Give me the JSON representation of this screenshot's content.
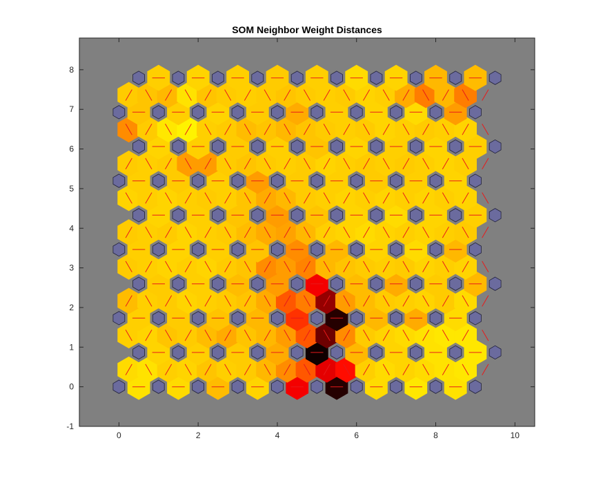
{
  "chart_data": {
    "type": "heatmap",
    "title": "SOM Neighbor Weight Distances",
    "xlabel": "",
    "ylabel": "",
    "xlim": [
      -1,
      10.5
    ],
    "ylim": [
      -1,
      8.8
    ],
    "xticks": [
      "0",
      "2",
      "4",
      "6",
      "8",
      "10"
    ],
    "yticks": [
      "-1",
      "0",
      "1",
      "2",
      "3",
      "4",
      "5",
      "6",
      "7",
      "8"
    ],
    "grid_rows": 10,
    "grid_cols": 10,
    "neuron_color": "#6b6b9e",
    "line_color": "#e8191a",
    "axes_background": "#808080",
    "colormap": [
      "#ffff00",
      "#ffd700",
      "#ffb000",
      "#ff7d00",
      "#ff0000",
      "#7a0000",
      "#000000"
    ],
    "edges": [
      {
        "x": 0.5,
        "y": 0.0,
        "v": 0.12
      },
      {
        "x": 1.5,
        "y": 0.0,
        "v": 0.15
      },
      {
        "x": 2.5,
        "y": 0.0,
        "v": 0.28
      },
      {
        "x": 3.5,
        "y": 0.0,
        "v": 0.18
      },
      {
        "x": 4.5,
        "y": 0.0,
        "v": 0.68
      },
      {
        "x": 5.5,
        "y": 0.0,
        "v": 0.95
      },
      {
        "x": 6.5,
        "y": 0.0,
        "v": 0.15
      },
      {
        "x": 7.5,
        "y": 0.0,
        "v": 0.1
      },
      {
        "x": 8.5,
        "y": 0.0,
        "v": 0.12
      },
      {
        "x": 0.25,
        "y": 0.433,
        "v": 0.15
      },
      {
        "x": 0.75,
        "y": 0.433,
        "v": 0.12
      },
      {
        "x": 1.25,
        "y": 0.433,
        "v": 0.2
      },
      {
        "x": 1.75,
        "y": 0.433,
        "v": 0.18
      },
      {
        "x": 2.25,
        "y": 0.433,
        "v": 0.25
      },
      {
        "x": 2.75,
        "y": 0.433,
        "v": 0.2
      },
      {
        "x": 3.25,
        "y": 0.433,
        "v": 0.22
      },
      {
        "x": 3.75,
        "y": 0.433,
        "v": 0.3
      },
      {
        "x": 4.25,
        "y": 0.433,
        "v": 0.45
      },
      {
        "x": 4.75,
        "y": 0.433,
        "v": 0.55
      },
      {
        "x": 5.25,
        "y": 0.433,
        "v": 0.7
      },
      {
        "x": 5.75,
        "y": 0.433,
        "v": 0.65
      },
      {
        "x": 6.25,
        "y": 0.433,
        "v": 0.2
      },
      {
        "x": 6.75,
        "y": 0.433,
        "v": 0.15
      },
      {
        "x": 7.25,
        "y": 0.433,
        "v": 0.18
      },
      {
        "x": 7.75,
        "y": 0.433,
        "v": 0.15
      },
      {
        "x": 8.25,
        "y": 0.433,
        "v": 0.12
      },
      {
        "x": 8.75,
        "y": 0.433,
        "v": 0.1
      },
      {
        "x": 1.0,
        "y": 0.866,
        "v": 0.18
      },
      {
        "x": 2.0,
        "y": 0.866,
        "v": 0.2
      },
      {
        "x": 3.0,
        "y": 0.866,
        "v": 0.22
      },
      {
        "x": 4.0,
        "y": 0.866,
        "v": 0.35
      },
      {
        "x": 5.0,
        "y": 0.866,
        "v": 0.98
      },
      {
        "x": 6.0,
        "y": 0.866,
        "v": 0.3
      },
      {
        "x": 7.0,
        "y": 0.866,
        "v": 0.18
      },
      {
        "x": 8.0,
        "y": 0.866,
        "v": 0.12
      },
      {
        "x": 9.0,
        "y": 0.866,
        "v": 0.1
      },
      {
        "x": 0.25,
        "y": 1.299,
        "v": 0.2
      },
      {
        "x": 0.75,
        "y": 1.299,
        "v": 0.18
      },
      {
        "x": 1.25,
        "y": 1.299,
        "v": 0.25
      },
      {
        "x": 1.75,
        "y": 1.299,
        "v": 0.22
      },
      {
        "x": 2.25,
        "y": 1.299,
        "v": 0.28
      },
      {
        "x": 2.75,
        "y": 1.299,
        "v": 0.35
      },
      {
        "x": 3.25,
        "y": 1.299,
        "v": 0.25
      },
      {
        "x": 3.75,
        "y": 1.299,
        "v": 0.3
      },
      {
        "x": 4.25,
        "y": 1.299,
        "v": 0.4
      },
      {
        "x": 4.75,
        "y": 1.299,
        "v": 0.55
      },
      {
        "x": 5.25,
        "y": 1.299,
        "v": 0.85
      },
      {
        "x": 5.75,
        "y": 1.299,
        "v": 0.45
      },
      {
        "x": 6.25,
        "y": 1.299,
        "v": 0.22
      },
      {
        "x": 6.75,
        "y": 1.299,
        "v": 0.18
      },
      {
        "x": 7.25,
        "y": 1.299,
        "v": 0.15
      },
      {
        "x": 7.75,
        "y": 1.299,
        "v": 0.12
      },
      {
        "x": 8.25,
        "y": 1.299,
        "v": 0.1
      },
      {
        "x": 8.75,
        "y": 1.299,
        "v": 0.1
      },
      {
        "x": 0.5,
        "y": 1.732,
        "v": 0.2
      },
      {
        "x": 1.5,
        "y": 1.732,
        "v": 0.22
      },
      {
        "x": 2.5,
        "y": 1.732,
        "v": 0.25
      },
      {
        "x": 3.5,
        "y": 1.732,
        "v": 0.3
      },
      {
        "x": 4.5,
        "y": 1.732,
        "v": 0.6
      },
      {
        "x": 5.5,
        "y": 1.732,
        "v": 0.95
      },
      {
        "x": 6.5,
        "y": 1.732,
        "v": 0.3
      },
      {
        "x": 7.5,
        "y": 1.732,
        "v": 0.35
      },
      {
        "x": 8.5,
        "y": 1.732,
        "v": 0.15
      },
      {
        "x": 0.25,
        "y": 2.165,
        "v": 0.28
      },
      {
        "x": 0.75,
        "y": 2.165,
        "v": 0.2
      },
      {
        "x": 1.25,
        "y": 2.165,
        "v": 0.22
      },
      {
        "x": 1.75,
        "y": 2.165,
        "v": 0.18
      },
      {
        "x": 2.25,
        "y": 2.165,
        "v": 0.2
      },
      {
        "x": 2.75,
        "y": 2.165,
        "v": 0.22
      },
      {
        "x": 3.25,
        "y": 2.165,
        "v": 0.25
      },
      {
        "x": 3.75,
        "y": 2.165,
        "v": 0.35
      },
      {
        "x": 4.25,
        "y": 2.165,
        "v": 0.55
      },
      {
        "x": 4.75,
        "y": 2.165,
        "v": 0.5
      },
      {
        "x": 5.25,
        "y": 2.165,
        "v": 0.8
      },
      {
        "x": 5.75,
        "y": 2.165,
        "v": 0.4
      },
      {
        "x": 6.25,
        "y": 2.165,
        "v": 0.28
      },
      {
        "x": 6.75,
        "y": 2.165,
        "v": 0.22
      },
      {
        "x": 7.25,
        "y": 2.165,
        "v": 0.2
      },
      {
        "x": 7.75,
        "y": 2.165,
        "v": 0.18
      },
      {
        "x": 8.25,
        "y": 2.165,
        "v": 0.22
      },
      {
        "x": 8.75,
        "y": 2.165,
        "v": 0.15
      },
      {
        "x": 1.0,
        "y": 2.598,
        "v": 0.22
      },
      {
        "x": 2.0,
        "y": 2.598,
        "v": 0.2
      },
      {
        "x": 3.0,
        "y": 2.598,
        "v": 0.28
      },
      {
        "x": 4.0,
        "y": 2.598,
        "v": 0.4
      },
      {
        "x": 5.0,
        "y": 2.598,
        "v": 0.68
      },
      {
        "x": 6.0,
        "y": 2.598,
        "v": 0.28
      },
      {
        "x": 7.0,
        "y": 2.598,
        "v": 0.35
      },
      {
        "x": 8.0,
        "y": 2.598,
        "v": 0.22
      },
      {
        "x": 9.0,
        "y": 2.598,
        "v": 0.3
      },
      {
        "x": 0.25,
        "y": 3.031,
        "v": 0.22
      },
      {
        "x": 0.75,
        "y": 3.031,
        "v": 0.2
      },
      {
        "x": 1.25,
        "y": 3.031,
        "v": 0.18
      },
      {
        "x": 1.75,
        "y": 3.031,
        "v": 0.2
      },
      {
        "x": 2.25,
        "y": 3.031,
        "v": 0.18
      },
      {
        "x": 2.75,
        "y": 3.031,
        "v": 0.22
      },
      {
        "x": 3.25,
        "y": 3.031,
        "v": 0.25
      },
      {
        "x": 3.75,
        "y": 3.031,
        "v": 0.45
      },
      {
        "x": 4.25,
        "y": 3.031,
        "v": 0.4
      },
      {
        "x": 4.75,
        "y": 3.031,
        "v": 0.48
      },
      {
        "x": 5.25,
        "y": 3.031,
        "v": 0.3
      },
      {
        "x": 5.75,
        "y": 3.031,
        "v": 0.25
      },
      {
        "x": 6.25,
        "y": 3.031,
        "v": 0.22
      },
      {
        "x": 6.75,
        "y": 3.031,
        "v": 0.2
      },
      {
        "x": 7.25,
        "y": 3.031,
        "v": 0.22
      },
      {
        "x": 7.75,
        "y": 3.031,
        "v": 0.18
      },
      {
        "x": 8.25,
        "y": 3.031,
        "v": 0.2
      },
      {
        "x": 8.75,
        "y": 3.031,
        "v": 0.18
      },
      {
        "x": 0.5,
        "y": 3.464,
        "v": 0.2
      },
      {
        "x": 1.5,
        "y": 3.464,
        "v": 0.18
      },
      {
        "x": 2.5,
        "y": 3.464,
        "v": 0.2
      },
      {
        "x": 3.5,
        "y": 3.464,
        "v": 0.25
      },
      {
        "x": 4.5,
        "y": 3.464,
        "v": 0.45
      },
      {
        "x": 5.5,
        "y": 3.464,
        "v": 0.3
      },
      {
        "x": 6.5,
        "y": 3.464,
        "v": 0.18
      },
      {
        "x": 7.5,
        "y": 3.464,
        "v": 0.15
      },
      {
        "x": 8.5,
        "y": 3.464,
        "v": 0.3
      },
      {
        "x": 0.25,
        "y": 3.897,
        "v": 0.22
      },
      {
        "x": 0.75,
        "y": 3.897,
        "v": 0.2
      },
      {
        "x": 1.25,
        "y": 3.897,
        "v": 0.22
      },
      {
        "x": 1.75,
        "y": 3.897,
        "v": 0.18
      },
      {
        "x": 2.25,
        "y": 3.897,
        "v": 0.2
      },
      {
        "x": 2.75,
        "y": 3.897,
        "v": 0.22
      },
      {
        "x": 3.25,
        "y": 3.897,
        "v": 0.28
      },
      {
        "x": 3.75,
        "y": 3.897,
        "v": 0.35
      },
      {
        "x": 4.25,
        "y": 3.897,
        "v": 0.38
      },
      {
        "x": 4.75,
        "y": 3.897,
        "v": 0.3
      },
      {
        "x": 5.25,
        "y": 3.897,
        "v": 0.2
      },
      {
        "x": 5.75,
        "y": 3.897,
        "v": 0.18
      },
      {
        "x": 6.25,
        "y": 3.897,
        "v": 0.15
      },
      {
        "x": 6.75,
        "y": 3.897,
        "v": 0.18
      },
      {
        "x": 7.25,
        "y": 3.897,
        "v": 0.2
      },
      {
        "x": 7.75,
        "y": 3.897,
        "v": 0.18
      },
      {
        "x": 8.25,
        "y": 3.897,
        "v": 0.2
      },
      {
        "x": 8.75,
        "y": 3.897,
        "v": 0.22
      },
      {
        "x": 1.0,
        "y": 4.33,
        "v": 0.18
      },
      {
        "x": 2.0,
        "y": 4.33,
        "v": 0.2
      },
      {
        "x": 3.0,
        "y": 4.33,
        "v": 0.25
      },
      {
        "x": 4.0,
        "y": 4.33,
        "v": 0.4
      },
      {
        "x": 5.0,
        "y": 4.33,
        "v": 0.25
      },
      {
        "x": 6.0,
        "y": 4.33,
        "v": 0.18
      },
      {
        "x": 7.0,
        "y": 4.33,
        "v": 0.15
      },
      {
        "x": 8.0,
        "y": 4.33,
        "v": 0.18
      },
      {
        "x": 9.0,
        "y": 4.33,
        "v": 0.2
      },
      {
        "x": 0.25,
        "y": 4.763,
        "v": 0.18
      },
      {
        "x": 0.75,
        "y": 4.763,
        "v": 0.2
      },
      {
        "x": 1.25,
        "y": 4.763,
        "v": 0.18
      },
      {
        "x": 1.75,
        "y": 4.763,
        "v": 0.2
      },
      {
        "x": 2.25,
        "y": 4.763,
        "v": 0.22
      },
      {
        "x": 2.75,
        "y": 4.763,
        "v": 0.2
      },
      {
        "x": 3.25,
        "y": 4.763,
        "v": 0.25
      },
      {
        "x": 3.75,
        "y": 4.763,
        "v": 0.35
      },
      {
        "x": 4.25,
        "y": 4.763,
        "v": 0.3
      },
      {
        "x": 4.75,
        "y": 4.763,
        "v": 0.22
      },
      {
        "x": 5.25,
        "y": 4.763,
        "v": 0.2
      },
      {
        "x": 5.75,
        "y": 4.763,
        "v": 0.18
      },
      {
        "x": 6.25,
        "y": 4.763,
        "v": 0.2
      },
      {
        "x": 6.75,
        "y": 4.763,
        "v": 0.18
      },
      {
        "x": 7.25,
        "y": 4.763,
        "v": 0.2
      },
      {
        "x": 7.75,
        "y": 4.763,
        "v": 0.18
      },
      {
        "x": 8.25,
        "y": 4.763,
        "v": 0.2
      },
      {
        "x": 8.75,
        "y": 4.763,
        "v": 0.18
      },
      {
        "x": 0.5,
        "y": 5.196,
        "v": 0.2
      },
      {
        "x": 1.5,
        "y": 5.196,
        "v": 0.22
      },
      {
        "x": 2.5,
        "y": 5.196,
        "v": 0.2
      },
      {
        "x": 3.5,
        "y": 5.196,
        "v": 0.4
      },
      {
        "x": 4.5,
        "y": 5.196,
        "v": 0.22
      },
      {
        "x": 5.5,
        "y": 5.196,
        "v": 0.2
      },
      {
        "x": 6.5,
        "y": 5.196,
        "v": 0.22
      },
      {
        "x": 7.5,
        "y": 5.196,
        "v": 0.2
      },
      {
        "x": 8.5,
        "y": 5.196,
        "v": 0.18
      },
      {
        "x": 0.25,
        "y": 5.629,
        "v": 0.22
      },
      {
        "x": 0.75,
        "y": 5.629,
        "v": 0.2
      },
      {
        "x": 1.25,
        "y": 5.629,
        "v": 0.22
      },
      {
        "x": 1.75,
        "y": 5.629,
        "v": 0.4
      },
      {
        "x": 2.25,
        "y": 5.629,
        "v": 0.4
      },
      {
        "x": 2.75,
        "y": 5.629,
        "v": 0.22
      },
      {
        "x": 3.25,
        "y": 5.629,
        "v": 0.25
      },
      {
        "x": 3.75,
        "y": 5.629,
        "v": 0.22
      },
      {
        "x": 4.25,
        "y": 5.629,
        "v": 0.2
      },
      {
        "x": 4.75,
        "y": 5.629,
        "v": 0.22
      },
      {
        "x": 5.25,
        "y": 5.629,
        "v": 0.18
      },
      {
        "x": 5.75,
        "y": 5.629,
        "v": 0.2
      },
      {
        "x": 6.25,
        "y": 5.629,
        "v": 0.22
      },
      {
        "x": 6.75,
        "y": 5.629,
        "v": 0.2
      },
      {
        "x": 7.25,
        "y": 5.629,
        "v": 0.22
      },
      {
        "x": 7.75,
        "y": 5.629,
        "v": 0.2
      },
      {
        "x": 8.25,
        "y": 5.629,
        "v": 0.18
      },
      {
        "x": 8.75,
        "y": 5.629,
        "v": 0.2
      },
      {
        "x": 1.0,
        "y": 6.062,
        "v": 0.18
      },
      {
        "x": 2.0,
        "y": 6.062,
        "v": 0.2
      },
      {
        "x": 3.0,
        "y": 6.062,
        "v": 0.22
      },
      {
        "x": 4.0,
        "y": 6.062,
        "v": 0.2
      },
      {
        "x": 5.0,
        "y": 6.062,
        "v": 0.25
      },
      {
        "x": 6.0,
        "y": 6.062,
        "v": 0.18
      },
      {
        "x": 7.0,
        "y": 6.062,
        "v": 0.2
      },
      {
        "x": 8.0,
        "y": 6.062,
        "v": 0.18
      },
      {
        "x": 9.0,
        "y": 6.062,
        "v": 0.2
      },
      {
        "x": 0.25,
        "y": 6.495,
        "v": 0.45
      },
      {
        "x": 0.75,
        "y": 6.495,
        "v": 0.22
      },
      {
        "x": 1.25,
        "y": 6.495,
        "v": 0.1
      },
      {
        "x": 1.75,
        "y": 6.495,
        "v": 0.05
      },
      {
        "x": 2.25,
        "y": 6.495,
        "v": 0.2
      },
      {
        "x": 2.75,
        "y": 6.495,
        "v": 0.22
      },
      {
        "x": 3.25,
        "y": 6.495,
        "v": 0.28
      },
      {
        "x": 3.75,
        "y": 6.495,
        "v": 0.25
      },
      {
        "x": 4.25,
        "y": 6.495,
        "v": 0.3
      },
      {
        "x": 4.75,
        "y": 6.495,
        "v": 0.25
      },
      {
        "x": 5.25,
        "y": 6.495,
        "v": 0.22
      },
      {
        "x": 5.75,
        "y": 6.495,
        "v": 0.2
      },
      {
        "x": 6.25,
        "y": 6.495,
        "v": 0.22
      },
      {
        "x": 6.75,
        "y": 6.495,
        "v": 0.18
      },
      {
        "x": 7.25,
        "y": 6.495,
        "v": 0.2
      },
      {
        "x": 7.75,
        "y": 6.495,
        "v": 0.22
      },
      {
        "x": 8.25,
        "y": 6.495,
        "v": 0.2
      },
      {
        "x": 8.75,
        "y": 6.495,
        "v": 0.18
      },
      {
        "x": 0.5,
        "y": 6.928,
        "v": 0.25
      },
      {
        "x": 1.5,
        "y": 6.928,
        "v": 0.2
      },
      {
        "x": 2.5,
        "y": 6.928,
        "v": 0.18
      },
      {
        "x": 3.5,
        "y": 6.928,
        "v": 0.22
      },
      {
        "x": 4.5,
        "y": 6.928,
        "v": 0.35
      },
      {
        "x": 5.5,
        "y": 6.928,
        "v": 0.2
      },
      {
        "x": 6.5,
        "y": 6.928,
        "v": 0.18
      },
      {
        "x": 7.5,
        "y": 6.928,
        "v": 0.15
      },
      {
        "x": 8.5,
        "y": 6.928,
        "v": 0.4
      },
      {
        "x": 0.25,
        "y": 7.361,
        "v": 0.22
      },
      {
        "x": 0.75,
        "y": 7.361,
        "v": 0.25
      },
      {
        "x": 1.25,
        "y": 7.361,
        "v": 0.3
      },
      {
        "x": 1.75,
        "y": 7.361,
        "v": 0.12
      },
      {
        "x": 2.25,
        "y": 7.361,
        "v": 0.25
      },
      {
        "x": 2.75,
        "y": 7.361,
        "v": 0.22
      },
      {
        "x": 3.25,
        "y": 7.361,
        "v": 0.2
      },
      {
        "x": 3.75,
        "y": 7.361,
        "v": 0.22
      },
      {
        "x": 4.25,
        "y": 7.361,
        "v": 0.25
      },
      {
        "x": 4.75,
        "y": 7.361,
        "v": 0.22
      },
      {
        "x": 5.25,
        "y": 7.361,
        "v": 0.2
      },
      {
        "x": 5.75,
        "y": 7.361,
        "v": 0.22
      },
      {
        "x": 6.25,
        "y": 7.361,
        "v": 0.18
      },
      {
        "x": 6.75,
        "y": 7.361,
        "v": 0.2
      },
      {
        "x": 7.25,
        "y": 7.361,
        "v": 0.35
      },
      {
        "x": 7.75,
        "y": 7.361,
        "v": 0.5
      },
      {
        "x": 8.25,
        "y": 7.361,
        "v": 0.3
      },
      {
        "x": 8.75,
        "y": 7.361,
        "v": 0.5
      },
      {
        "x": 1.0,
        "y": 7.794,
        "v": 0.2
      },
      {
        "x": 2.0,
        "y": 7.794,
        "v": 0.18
      },
      {
        "x": 3.0,
        "y": 7.794,
        "v": 0.2
      },
      {
        "x": 4.0,
        "y": 7.794,
        "v": 0.22
      },
      {
        "x": 5.0,
        "y": 7.794,
        "v": 0.2
      },
      {
        "x": 6.0,
        "y": 7.794,
        "v": 0.15
      },
      {
        "x": 7.0,
        "y": 7.794,
        "v": 0.18
      },
      {
        "x": 8.0,
        "y": 7.794,
        "v": 0.3
      },
      {
        "x": 9.0,
        "y": 7.794,
        "v": 0.28
      }
    ]
  }
}
